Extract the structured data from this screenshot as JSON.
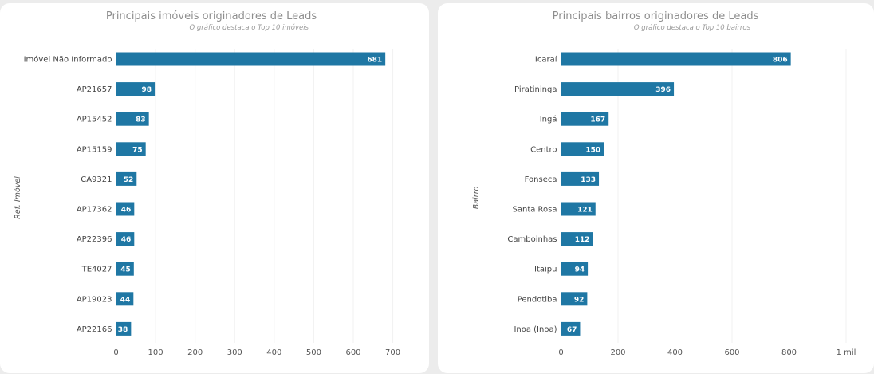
{
  "charts": {
    "left": {
      "title": "Principais imóveis originadores de Leads",
      "subtitle": "O gráfico destaca o Top 10 imóveis",
      "ylabel": "Ref. Imóvel"
    },
    "right": {
      "title": "Principais bairros originadores de Leads",
      "subtitle": "O gráfico destaca o Top 10 bairros",
      "ylabel": "Bairro"
    }
  },
  "chart_data": [
    {
      "type": "bar",
      "orientation": "horizontal",
      "title": "Principais imóveis originadores de Leads",
      "subtitle": "O gráfico destaca o Top 10 imóveis",
      "xlabel": "",
      "ylabel": "Ref. Imóvel",
      "categories": [
        "Imóvel Não Informado",
        "AP21657",
        "AP15452",
        "AP15159",
        "CA9321",
        "AP17362",
        "AP22396",
        "TE4027",
        "AP19023",
        "AP22166"
      ],
      "values": [
        681,
        98,
        83,
        75,
        52,
        46,
        46,
        45,
        44,
        38
      ],
      "xlim": [
        0,
        720
      ],
      "ticks": [
        0,
        100,
        200,
        300,
        400,
        500,
        600,
        700
      ],
      "tick_labels": [
        "0",
        "100",
        "200",
        "300",
        "400",
        "500",
        "600",
        "700"
      ],
      "bar_color": "#1f77a4",
      "grid": true
    },
    {
      "type": "bar",
      "orientation": "horizontal",
      "title": "Principais bairros originadores de Leads",
      "subtitle": "O gráfico destaca o Top 10 bairros",
      "xlabel": "",
      "ylabel": "Bairro",
      "categories": [
        "Icaraí",
        "Piratininga",
        "Ingá",
        "Centro",
        "Fonseca",
        "Santa Rosa",
        "Camboinhas",
        "Itaipu",
        "Pendotiba",
        "Inoa (Inoa)"
      ],
      "values": [
        806,
        396,
        167,
        150,
        133,
        121,
        112,
        94,
        92,
        67
      ],
      "xlim": [
        0,
        1000
      ],
      "ticks": [
        0,
        200,
        400,
        600,
        800,
        1000
      ],
      "tick_labels": [
        "0",
        "200",
        "400",
        "600",
        "800",
        "1 mil"
      ],
      "bar_color": "#1f77a4",
      "grid": true
    }
  ]
}
